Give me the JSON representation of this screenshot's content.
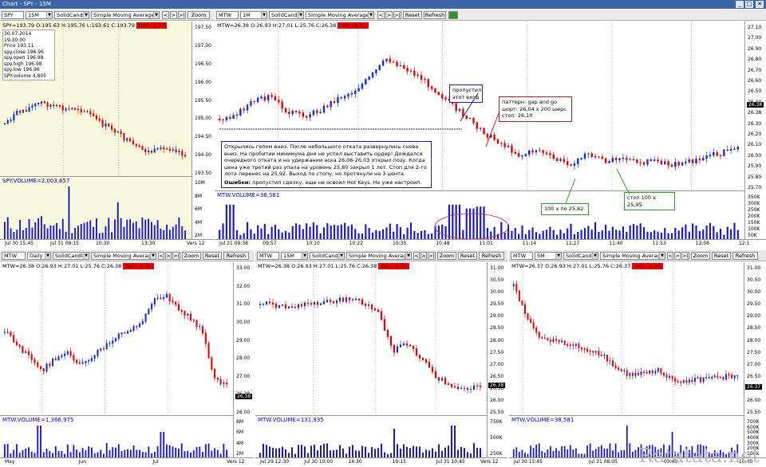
{
  "window": {
    "title": "Chart - SPY - 15M",
    "close": "✕",
    "max": "□",
    "min": "_"
  },
  "panes": {
    "spy": {
      "symbol": "SPY",
      "interval": "15M",
      "style": "SolidCandle",
      "study": "Simple Moving Average",
      "zoom": "Zoom",
      "info": {
        "sym": "SPY=193.79",
        "o": "O:195.63",
        "h": "H:195.76",
        "l": "L:193.61",
        "c": "C:193.79",
        "net": "Net: -1.79"
      },
      "tooltip": [
        "30.07.2014 19:30:00",
        "Price  193.11",
        "spy.close  196.96",
        "spy.open  196.98",
        "spy.high  196.98",
        "spy.low  196.96",
        "SPY.volume  4,805"
      ],
      "yticks": [
        "197.50",
        "197.00",
        "196.50",
        "196.00",
        "195.50",
        "195.00",
        "194.50",
        "194.00",
        "193.50"
      ],
      "vol_label": "SPY.VOLUME=2,003,657",
      "vol_ticks": [
        "10M",
        "8M",
        "6M",
        "4M",
        "2M"
      ],
      "xticks": [
        "Jul 30 15:45",
        "Jul 31 09:15",
        "10:30",
        "13:30"
      ],
      "vers": "Vers 12"
    },
    "mtw_main": {
      "symbol": "MTW",
      "interval": "1M",
      "style": "SolidCandle",
      "study": "Simple Moving Average",
      "reset": "Reset",
      "refresh": "Refresh",
      "info": {
        "sym": "MTW=26.38",
        "o": "O:26.93",
        "h": "H:27.01",
        "l": "L:25.76",
        "c": "C:26.38",
        "net": "Net: -0.55"
      },
      "yticks": [
        "27.10",
        "27.00",
        "26.90",
        "26.80",
        "26.70",
        "26.60",
        "26.50",
        "26.40",
        "26.38",
        "26.30",
        "26.20",
        "26.10",
        "26.00",
        "25.90",
        "25.80",
        "25.70"
      ],
      "vol_label": "MTW.VOLUME=38,581",
      "vol_ticks": [
        "350K",
        "300K",
        "250K",
        "200K",
        "150K",
        "100K",
        "50K"
      ],
      "xticks": [
        "Jul 31 09:38",
        "09:57",
        "10:10",
        "10:22",
        "10:35",
        "10:48",
        "11:01",
        "11:14",
        "11:27",
        "11:40",
        "11:53",
        "12:06",
        "12:1"
      ],
      "price_tag": "26.38",
      "note_main": "Открылись гепом вниз. После небольшого отката развернулись снова вниз. На пробитии минимума дня не успел выставить ордер! Дождался очередного отката и на удержании аска 26,06-26,03 открыл позу. Когда цена уже третий раз упала на уровень 25,80 закрыл 1 лот. Стоп для 2-го лота перенес на 25,92. Выход по стопу, но протянули на 3 цента.",
      "note_err_title": "Ошибки:",
      "note_err": " пропустил сделку, еще не освоил Hot Keys. Но уже настроил.",
      "note_missed": "пропустил этот вход",
      "note_pattern": "паттерн: gap and go шорт: 26,04 x 200 шерс стоп: 26,10",
      "note_exit1": "100 х по 25,82",
      "note_exit2": "стоп 100 х 25,95"
    },
    "mtw_daily": {
      "symbol": "MTW",
      "interval": "Daily",
      "style": "SolidCandle",
      "study": "Simple Moving Average",
      "zoom": "Zoom",
      "reset": "Reset",
      "refresh": "Refresh",
      "info": {
        "sym": "MTW=26.38",
        "o": "O:26.93",
        "h": "H:27.01",
        "l": "L:25.76",
        "c": "C:26.38",
        "net": "Net: -0.55"
      },
      "yticks": [
        "33.00",
        "32.00",
        "31.00",
        "30.00",
        "29.00",
        "28.00",
        "27.00",
        "26.38",
        "26.00"
      ],
      "vol_label": "MTW.VOLUME=1,366,975",
      "vol_ticks": [
        "8M",
        "6M",
        "4M",
        "2M"
      ],
      "xticks": [
        "May",
        "Jun",
        "Jul"
      ],
      "price_tag": "26.38",
      "vers": "Vers 12"
    },
    "mtw_15m": {
      "symbol": "MTW",
      "interval": "15M",
      "style": "SolidCandle",
      "study": "Simple Moving Average",
      "zoom": "Zoom",
      "reset": "Reset",
      "refresh": "Refresh",
      "info": {
        "sym": "MTW=26.38",
        "o": "O:26.93",
        "h": "H:27.01",
        "l": "L:25.76",
        "c": "C:26.38",
        "net": "Net: -0.55"
      },
      "yticks": [
        "31.00",
        "30.50",
        "30.00",
        "29.50",
        "29.00",
        "28.50",
        "28.00",
        "27.50",
        "27.00",
        "26.50",
        "26.38",
        "26.00",
        "25.50"
      ],
      "vol_label": "MTW.VOLUME=131,935",
      "vol_ticks": [
        "750K",
        "500K",
        "250K"
      ],
      "xticks": [
        "Jul 29 12:30",
        "Jul 30 10:00",
        "14:30",
        "19:15",
        "Jul 31 10:45"
      ],
      "price_tag": "26.38",
      "vers": "Vers 12"
    },
    "mtw_5m": {
      "symbol": "MTW",
      "interval": "5M",
      "style": "SolidCandle",
      "study": "Simple Moving Average",
      "zoom": "Zoom",
      "reset": "Reset",
      "refresh": "Refresh",
      "info": {
        "sym": "MTW=26.37",
        "o": "O:26.93",
        "h": "H:27.01",
        "l": "L:25.76",
        "c": "C:26.37",
        "net": "Net: -0.56"
      },
      "yticks": [
        "31.00",
        "30.50",
        "30.00",
        "29.50",
        "29.00",
        "28.50",
        "28.00",
        "27.50",
        "27.00",
        "26.50",
        "26.37",
        "26.00",
        "25.50"
      ],
      "vol_label": "MTW.VOLUME=38,581",
      "vol_ticks": [
        "700K",
        "600K",
        "500K",
        "400K",
        "300K",
        "200K",
        "100K"
      ],
      "xticks": [
        "Jul 30 15:45",
        "Jul 31 08:05",
        "09:40",
        "10:40"
      ],
      "price_tag": "26.37"
    }
  },
  "watermark": "Ratatata.net",
  "colors": {
    "up": "#1030d0",
    "down": "#e00000",
    "volume": "#1a1acc",
    "note_border": "#2020a0",
    "ann_green": "#339933",
    "ann_red": "#aa2222",
    "spy_bg": "#f8f8dc"
  }
}
